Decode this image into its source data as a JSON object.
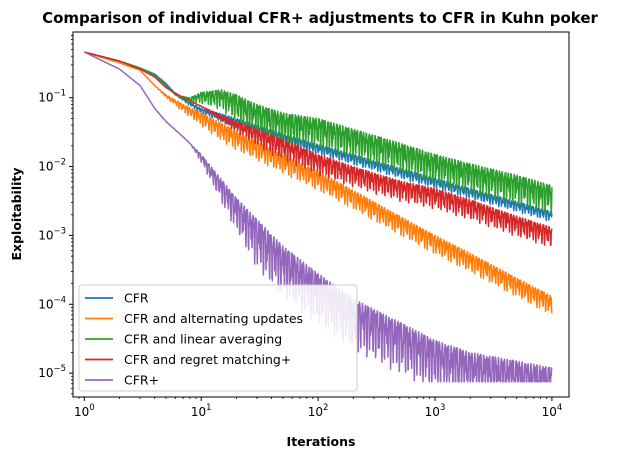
{
  "chart_data": {
    "type": "line",
    "title": "Comparison of individual CFR+ adjustments to CFR in Kuhn poker",
    "xlabel": "Iterations",
    "ylabel": "Exploitability",
    "xscale": "log",
    "yscale": "log",
    "xlim": [
      0.8,
      14000
    ],
    "ylim": [
      4.5e-06,
      0.9
    ],
    "x_ticks": [
      {
        "value": 1,
        "base": "10",
        "exp": "0"
      },
      {
        "value": 10,
        "base": "10",
        "exp": "1"
      },
      {
        "value": 100,
        "base": "10",
        "exp": "2"
      },
      {
        "value": 1000,
        "base": "10",
        "exp": "3"
      },
      {
        "value": 10000,
        "base": "10",
        "exp": "4"
      }
    ],
    "y_ticks": [
      {
        "value": 1e-05,
        "base": "10",
        "exp": "−5"
      },
      {
        "value": 0.0001,
        "base": "10",
        "exp": "−4"
      },
      {
        "value": 0.001,
        "base": "10",
        "exp": "−3"
      },
      {
        "value": 0.01,
        "base": "10",
        "exp": "−2"
      },
      {
        "value": 0.1,
        "base": "10",
        "exp": "−1"
      }
    ],
    "grid": false,
    "legend_position": "lower-left",
    "series": [
      {
        "name": "CFR",
        "color": "#1f77b4",
        "points": [
          [
            1,
            0.46
          ],
          [
            2,
            0.34
          ],
          [
            3,
            0.27
          ],
          [
            4,
            0.22
          ],
          [
            5,
            0.16
          ],
          [
            6,
            0.115
          ],
          [
            8,
            0.085
          ],
          [
            10,
            0.07
          ],
          [
            15,
            0.058
          ],
          [
            20,
            0.05
          ],
          [
            30,
            0.04
          ],
          [
            50,
            0.03
          ],
          [
            100,
            0.021
          ],
          [
            200,
            0.015
          ],
          [
            500,
            0.0095
          ],
          [
            1000,
            0.0068
          ],
          [
            2000,
            0.0048
          ],
          [
            5000,
            0.0031
          ],
          [
            10000,
            0.0022
          ]
        ],
        "oscillation": 0.15,
        "osc_start": 5
      },
      {
        "name": "CFR and alternating updates",
        "color": "#ff7f0e",
        "points": [
          [
            1,
            0.46
          ],
          [
            2,
            0.32
          ],
          [
            3,
            0.25
          ],
          [
            4,
            0.15
          ],
          [
            5,
            0.11
          ],
          [
            7,
            0.08
          ],
          [
            10,
            0.06
          ],
          [
            20,
            0.033
          ],
          [
            50,
            0.015
          ],
          [
            100,
            0.0085
          ],
          [
            200,
            0.0045
          ],
          [
            500,
            0.0019
          ],
          [
            1000,
            0.001
          ],
          [
            2000,
            0.00055
          ],
          [
            5000,
            0.00024
          ],
          [
            10000,
            0.00013
          ]
        ],
        "oscillation": 0.28,
        "osc_start": 4
      },
      {
        "name": "CFR and linear averaging",
        "color": "#2ca02c",
        "points": [
          [
            1,
            0.46
          ],
          [
            2,
            0.34
          ],
          [
            3,
            0.27
          ],
          [
            4,
            0.21
          ],
          [
            5,
            0.15
          ],
          [
            6,
            0.11
          ],
          [
            8,
            0.1
          ],
          [
            10,
            0.12
          ],
          [
            15,
            0.13
          ],
          [
            20,
            0.11
          ],
          [
            30,
            0.08
          ],
          [
            50,
            0.06
          ],
          [
            100,
            0.05
          ],
          [
            200,
            0.035
          ],
          [
            500,
            0.022
          ],
          [
            1000,
            0.015
          ],
          [
            2000,
            0.011
          ],
          [
            5000,
            0.0075
          ],
          [
            10000,
            0.0053
          ]
        ],
        "oscillation": 0.45,
        "osc_start": 6
      },
      {
        "name": "CFR and regret matching+",
        "color": "#d62728",
        "points": [
          [
            1,
            0.46
          ],
          [
            2,
            0.34
          ],
          [
            3,
            0.26
          ],
          [
            4,
            0.2
          ],
          [
            5,
            0.14
          ],
          [
            7,
            0.1
          ],
          [
            10,
            0.075
          ],
          [
            15,
            0.055
          ],
          [
            20,
            0.045
          ],
          [
            30,
            0.035
          ],
          [
            50,
            0.025
          ],
          [
            100,
            0.015
          ],
          [
            200,
            0.01
          ],
          [
            500,
            0.0062
          ],
          [
            1000,
            0.0048
          ],
          [
            2000,
            0.0033
          ],
          [
            5000,
            0.0019
          ],
          [
            10000,
            0.0013
          ]
        ],
        "oscillation": 0.3,
        "osc_start": 10
      },
      {
        "name": "CFR+",
        "color": "#9467bd",
        "points": [
          [
            1,
            0.46
          ],
          [
            2,
            0.26
          ],
          [
            3,
            0.15
          ],
          [
            4,
            0.07
          ],
          [
            5,
            0.045
          ],
          [
            7,
            0.027
          ],
          [
            10,
            0.015
          ],
          [
            20,
            0.0035
          ],
          [
            50,
            0.0007
          ],
          [
            100,
            0.00028
          ],
          [
            200,
            0.00012
          ],
          [
            500,
            5.5e-05
          ],
          [
            1000,
            3e-05
          ],
          [
            2000,
            2e-05
          ],
          [
            5000,
            1.5e-05
          ],
          [
            10000,
            1.2e-05
          ]
        ],
        "oscillation": 0.75,
        "osc_start": 8,
        "floor": 7.5e-06
      }
    ]
  }
}
